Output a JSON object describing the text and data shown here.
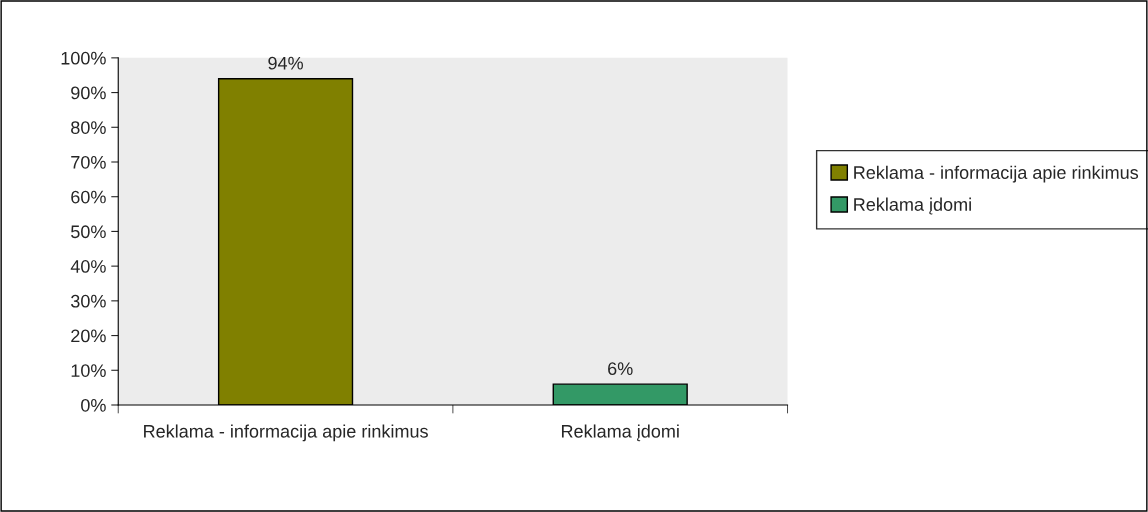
{
  "chart_data": {
    "type": "bar",
    "categories": [
      "Reklama - informacija apie rinkimus",
      "Reklama įdomi"
    ],
    "series": [
      {
        "name": "Reklama - informacija apie rinkimus",
        "color": "#808000",
        "values": [
          94,
          null
        ],
        "value_labels": [
          "94%",
          null
        ]
      },
      {
        "name": "Reklama įdomi",
        "color": "#339966",
        "values": [
          null,
          6
        ],
        "value_labels": [
          null,
          "6%"
        ]
      }
    ],
    "ylim": [
      0,
      100
    ],
    "yticks": [
      {
        "value": 0,
        "label": "0%"
      },
      {
        "value": 10,
        "label": "10%"
      },
      {
        "value": 20,
        "label": "20%"
      },
      {
        "value": 30,
        "label": "30%"
      },
      {
        "value": 40,
        "label": "40%"
      },
      {
        "value": 50,
        "label": "50%"
      },
      {
        "value": 60,
        "label": "60%"
      },
      {
        "value": 70,
        "label": "70%"
      },
      {
        "value": 80,
        "label": "80%"
      },
      {
        "value": 90,
        "label": "90%"
      },
      {
        "value": 100,
        "label": "100%"
      }
    ],
    "grid": false,
    "legend": "right"
  }
}
